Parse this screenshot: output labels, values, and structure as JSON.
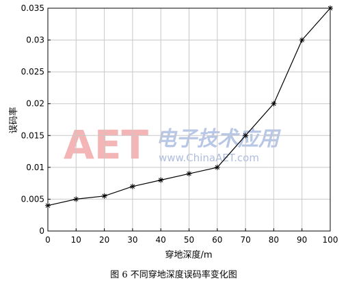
{
  "chart_data": {
    "type": "line",
    "title": "",
    "xlabel": "穿地深度/m",
    "ylabel": "误码率",
    "caption": "图 6   不同穿地深度误码率变化图",
    "xlim": [
      0,
      100
    ],
    "ylim": [
      0,
      0.035
    ],
    "grid": true,
    "marker": "asterisk",
    "x_ticks": [
      "0",
      "10",
      "20",
      "30",
      "40",
      "50",
      "60",
      "70",
      "80",
      "90",
      "100"
    ],
    "y_ticks": [
      "0",
      "0.005",
      "0.01",
      "0.015",
      "0.02",
      "0.025",
      "0.03",
      "0.035"
    ],
    "series": [
      {
        "x": [
          0,
          10,
          20,
          30,
          40,
          50,
          60,
          70,
          80,
          90,
          100
        ],
        "values": [
          0.004,
          0.005,
          0.0055,
          0.007,
          0.008,
          0.009,
          0.01,
          0.015,
          0.02,
          0.03,
          0.035
        ]
      }
    ]
  },
  "watermark": {
    "logo": "AET",
    "chinese": "电子技术应用",
    "url": "www.ChinaAET.com"
  },
  "colors": {
    "line": "#000000",
    "grid": "#c8c8c8",
    "watermark_logo": "#f3b5b5"
  }
}
